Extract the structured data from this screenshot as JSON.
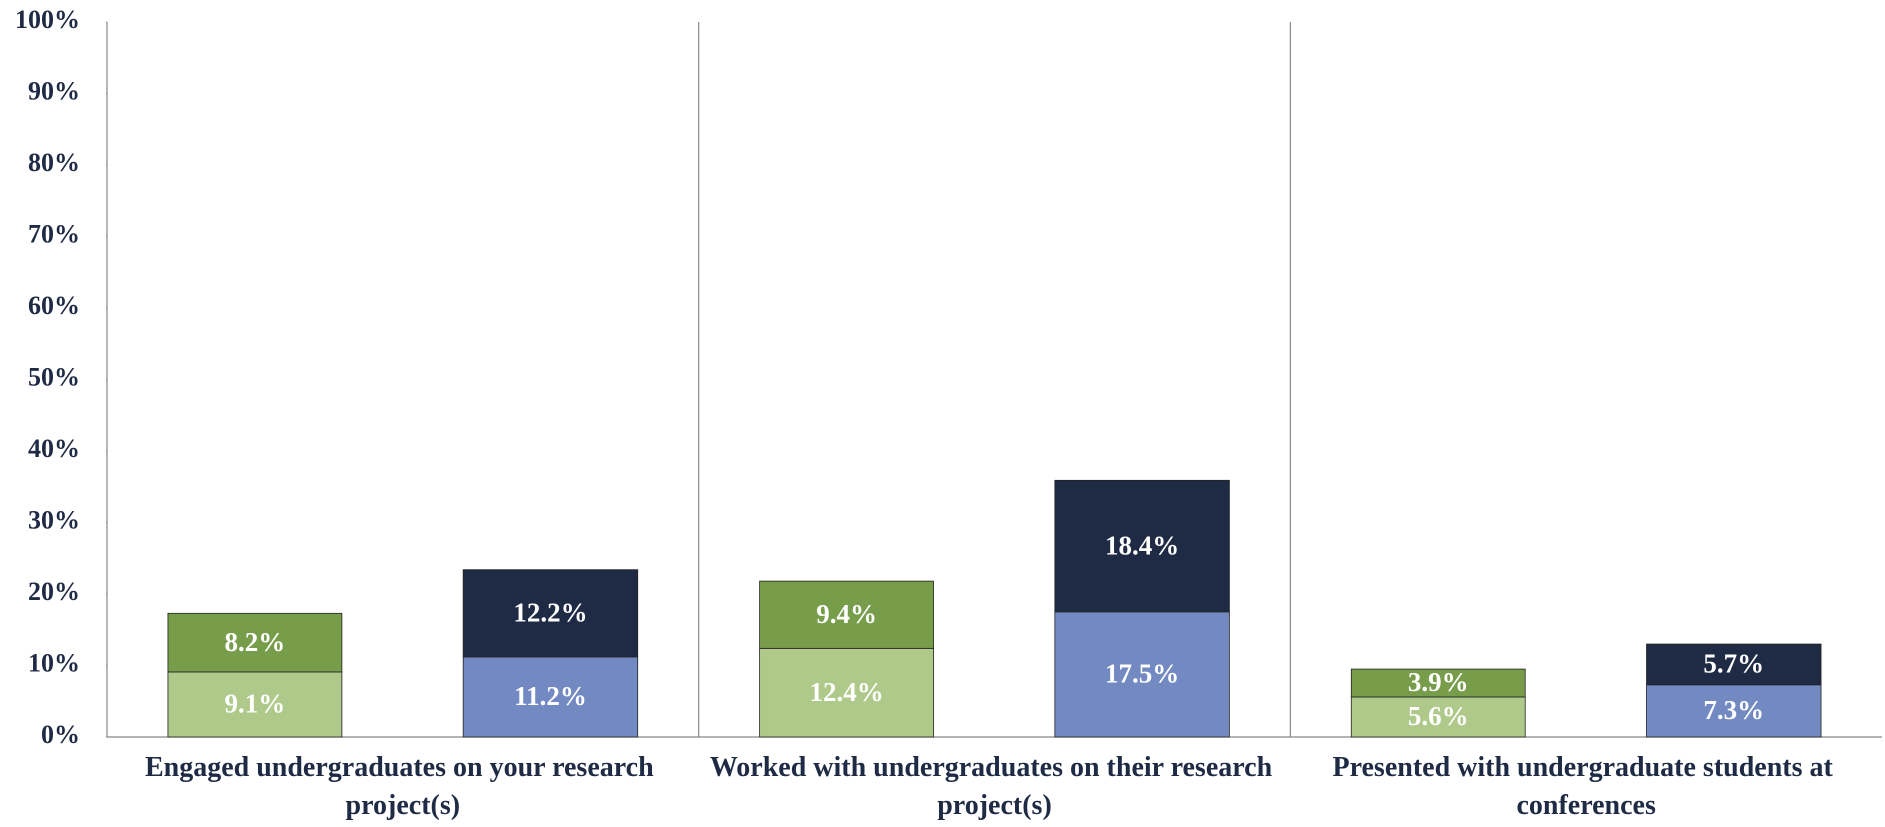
{
  "chart_data": {
    "type": "stacked_bar",
    "categories": [
      "Engaged undergraduates on your research project(s)",
      "Worked with undergraduates on their research project(s)",
      "Presented with undergraduate students at conferences"
    ],
    "stacks": [
      {
        "series": [
          {
            "color": "#aec98a",
            "values": [
              9.1,
              12.4,
              5.6
            ],
            "value_labels": [
              "9.1%",
              "12.4%",
              "5.6%"
            ]
          },
          {
            "color": "#779d4b",
            "values": [
              8.2,
              9.4,
              3.9
            ],
            "value_labels": [
              "8.2%",
              "9.4%",
              "3.9%"
            ]
          }
        ]
      },
      {
        "series": [
          {
            "color": "#7389c1",
            "values": [
              11.2,
              17.5,
              7.3
            ],
            "value_labels": [
              "11.2%",
              "17.5%",
              "7.3%"
            ]
          },
          {
            "color": "#1f2a44",
            "values": [
              12.2,
              18.4,
              5.7
            ],
            "value_labels": [
              "12.2%",
              "18.4%",
              "5.7%"
            ]
          }
        ]
      }
    ],
    "ylim": [
      0,
      100
    ],
    "yticks": [
      {
        "value": 0,
        "label": "0%"
      },
      {
        "value": 10,
        "label": "10%"
      },
      {
        "value": 20,
        "label": "20%"
      },
      {
        "value": 30,
        "label": "30%"
      },
      {
        "value": 40,
        "label": "40%"
      },
      {
        "value": 50,
        "label": "50%"
      },
      {
        "value": 60,
        "label": "60%"
      },
      {
        "value": 70,
        "label": "70%"
      },
      {
        "value": 80,
        "label": "80%"
      },
      {
        "value": 90,
        "label": "90%"
      },
      {
        "value": 100,
        "label": "100%"
      }
    ]
  }
}
